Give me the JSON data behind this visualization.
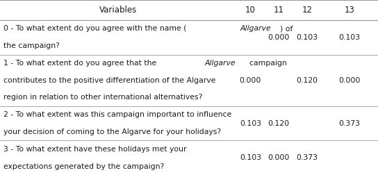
{
  "header": [
    "Variables",
    "10",
    "11",
    "12",
    "13"
  ],
  "rows": [
    {
      "lines": [
        [
          {
            "text": "0 - To what extent do you agree with the name (",
            "italic": false
          },
          {
            "text": "Allgarve",
            "italic": true
          },
          {
            "text": ") of",
            "italic": false
          }
        ],
        [
          {
            "text": "the campaign?",
            "italic": false
          }
        ]
      ],
      "values": [
        "",
        "0.000",
        "0.103",
        "0.103"
      ],
      "n_lines": 2
    },
    {
      "lines": [
        [
          {
            "text": "1 - To what extent do you agree that the ",
            "italic": false
          },
          {
            "text": "Allgarve",
            "italic": true
          },
          {
            "text": "  campaign",
            "italic": false
          }
        ],
        [
          {
            "text": "contributes to the positive differentiation of the Algarve",
            "italic": false
          }
        ],
        [
          {
            "text": "region in relation to other international alternatives?",
            "italic": false
          }
        ]
      ],
      "values": [
        "0.000",
        "",
        "0.120",
        "0.000"
      ],
      "n_lines": 3
    },
    {
      "lines": [
        [
          {
            "text": "2 - To what extent was this campaign important to influence",
            "italic": false
          }
        ],
        [
          {
            "text": "your decision of coming to the Algarve for your holidays?",
            "italic": false
          }
        ]
      ],
      "values": [
        "0.103",
        "0.120",
        "",
        "0.373"
      ],
      "n_lines": 2
    },
    {
      "lines": [
        [
          {
            "text": "3 - To what extent have these holidays met your",
            "italic": false
          }
        ],
        [
          {
            "text": "expectations generated by the campaign?",
            "italic": false
          }
        ]
      ],
      "values": [
        "0.103",
        "0.000",
        "0.373",
        ""
      ],
      "n_lines": 2
    }
  ],
  "background_color": "#ffffff",
  "text_color": "#1a1a1a",
  "line_color": "#999999",
  "font_size": 7.8,
  "header_font_size": 8.5,
  "fig_width": 5.44,
  "fig_height": 2.52,
  "dpi": 100
}
